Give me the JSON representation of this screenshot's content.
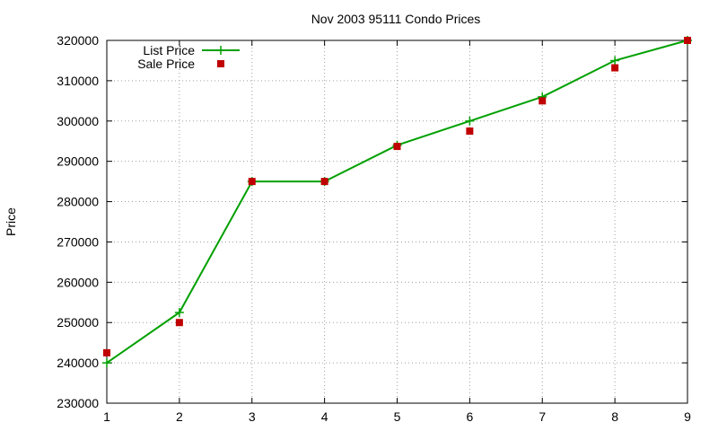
{
  "chart_data": {
    "type": "line",
    "title": "Nov 2003 95111 Condo Prices",
    "xlabel": "",
    "ylabel": "Price",
    "x": [
      1,
      2,
      3,
      4,
      5,
      6,
      7,
      8,
      9
    ],
    "xlim": [
      1,
      9
    ],
    "ylim": [
      230000,
      320000
    ],
    "x_ticks": [
      "1",
      "2",
      "3",
      "4",
      "5",
      "6",
      "7",
      "8",
      "9"
    ],
    "y_ticks": [
      "230000",
      "240000",
      "250000",
      "260000",
      "270000",
      "280000",
      "290000",
      "300000",
      "310000",
      "320000"
    ],
    "grid": true,
    "legend_position": "top-left",
    "series": [
      {
        "name": "List Price",
        "style": "line+cross",
        "color": "#00a000",
        "values": [
          240000,
          252500,
          285000,
          285000,
          294000,
          300000,
          306000,
          315000,
          320000
        ]
      },
      {
        "name": "Sale Price",
        "style": "square-points",
        "color": "#c00000",
        "values": [
          242500,
          250000,
          285000,
          285000,
          293700,
          297500,
          305000,
          313200,
          320000
        ]
      }
    ]
  }
}
